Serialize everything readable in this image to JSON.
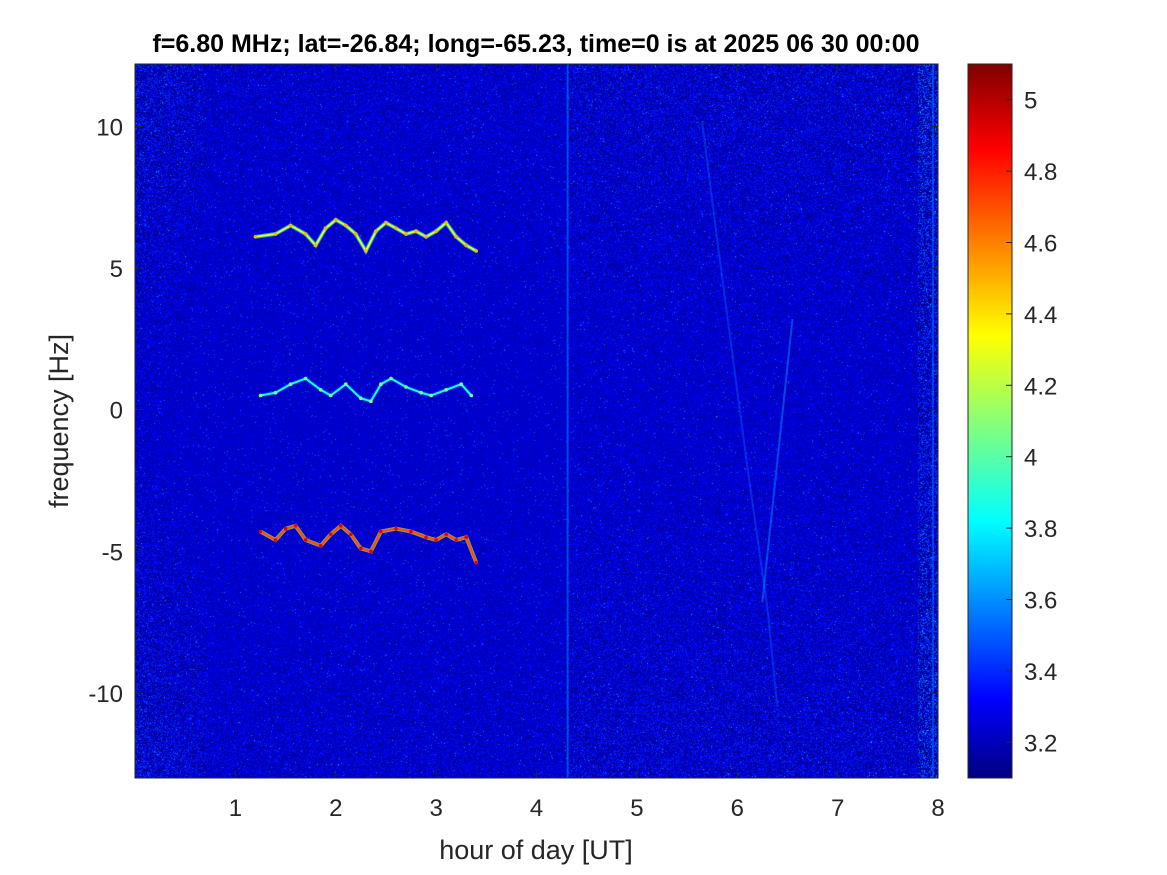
{
  "chart_data": {
    "type": "heatmap",
    "title": "f=6.80 MHz;  lat=-26.84; long=-65.23, time=0 is at 2025 06 30 00:00",
    "xlabel": "hour of day [UT]",
    "ylabel": "frequency [Hz]",
    "xlim": [
      0,
      8
    ],
    "ylim": [
      -13,
      12.2
    ],
    "xticks": [
      1,
      2,
      3,
      4,
      5,
      6,
      7,
      8
    ],
    "xtick_labels": [
      "1",
      "2",
      "3",
      "4",
      "5",
      "6",
      "7",
      "8"
    ],
    "yticks": [
      10,
      5,
      0,
      -5,
      -10
    ],
    "ytick_labels": [
      "10",
      "5",
      "0",
      "-5",
      "-10"
    ],
    "colorbar": {
      "colormap": "jet",
      "clim": [
        3.1,
        5.1
      ],
      "ticks": [
        5,
        4.8,
        4.6,
        4.4,
        4.2,
        4,
        3.8,
        3.6,
        3.4,
        3.2
      ],
      "tick_labels": [
        "5",
        "4.8",
        "4.6",
        "4.4",
        "4.2",
        "4",
        "3.8",
        "3.6",
        "3.4",
        "3.2"
      ]
    },
    "background_level": 3.25,
    "traces": [
      {
        "points": [
          [
            1.2,
            6.1
          ],
          [
            1.4,
            6.2
          ],
          [
            1.55,
            6.5
          ],
          [
            1.7,
            6.2
          ],
          [
            1.8,
            5.8
          ],
          [
            1.9,
            6.4
          ],
          [
            2.0,
            6.7
          ],
          [
            2.1,
            6.5
          ],
          [
            2.2,
            6.2
          ],
          [
            2.3,
            5.6
          ],
          [
            2.4,
            6.3
          ],
          [
            2.5,
            6.6
          ],
          [
            2.6,
            6.4
          ],
          [
            2.7,
            6.2
          ],
          [
            2.8,
            6.3
          ],
          [
            2.9,
            6.1
          ],
          [
            3.0,
            6.3
          ],
          [
            3.1,
            6.6
          ],
          [
            3.2,
            6.1
          ],
          [
            3.3,
            5.8
          ],
          [
            3.4,
            5.6
          ]
        ],
        "level": 4.3
      },
      {
        "points": [
          [
            1.25,
            0.5
          ],
          [
            1.4,
            0.6
          ],
          [
            1.55,
            0.9
          ],
          [
            1.7,
            1.1
          ],
          [
            1.85,
            0.7
          ],
          [
            1.95,
            0.5
          ],
          [
            2.1,
            0.9
          ],
          [
            2.25,
            0.4
          ],
          [
            2.35,
            0.3
          ],
          [
            2.45,
            0.9
          ],
          [
            2.55,
            1.1
          ],
          [
            2.7,
            0.8
          ],
          [
            2.85,
            0.6
          ],
          [
            2.95,
            0.5
          ],
          [
            3.1,
            0.7
          ],
          [
            3.25,
            0.9
          ],
          [
            3.35,
            0.5
          ]
        ],
        "level": 3.9
      },
      {
        "points": [
          [
            1.25,
            -4.3
          ],
          [
            1.4,
            -4.6
          ],
          [
            1.5,
            -4.2
          ],
          [
            1.6,
            -4.1
          ],
          [
            1.7,
            -4.6
          ],
          [
            1.85,
            -4.8
          ],
          [
            1.95,
            -4.4
          ],
          [
            2.05,
            -4.1
          ],
          [
            2.15,
            -4.4
          ],
          [
            2.25,
            -4.9
          ],
          [
            2.35,
            -5.0
          ],
          [
            2.45,
            -4.3
          ],
          [
            2.6,
            -4.2
          ],
          [
            2.75,
            -4.3
          ],
          [
            2.9,
            -4.5
          ],
          [
            3.0,
            -4.6
          ],
          [
            3.1,
            -4.4
          ],
          [
            3.2,
            -4.6
          ],
          [
            3.3,
            -4.5
          ],
          [
            3.4,
            -5.4
          ]
        ],
        "level": 4.7
      }
    ],
    "faint_features": [
      {
        "points": [
          [
            5.65,
            10.2
          ],
          [
            5.8,
            6.0
          ],
          [
            5.95,
            2.0
          ],
          [
            6.1,
            -2.0
          ],
          [
            6.3,
            -7.0
          ],
          [
            6.4,
            -10.5
          ]
        ],
        "level": 3.5
      },
      {
        "points": [
          [
            4.31,
            -13.0
          ],
          [
            4.31,
            12.2
          ]
        ],
        "level": 3.6
      },
      {
        "points": [
          [
            7.95,
            -13.0
          ],
          [
            7.95,
            12.2
          ]
        ],
        "level": 3.55
      },
      {
        "points": [
          [
            6.55,
            3.2
          ],
          [
            6.25,
            -6.8
          ]
        ],
        "level": 3.6
      }
    ]
  }
}
